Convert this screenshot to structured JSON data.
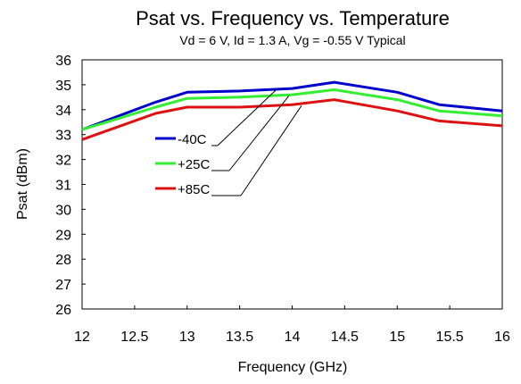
{
  "chart_data": {
    "type": "line",
    "title": "Psat vs. Frequency vs. Temperature",
    "subtitle": "Vd = 6 V, Id = 1.3 A, Vg = -0.55 V Typical",
    "xlabel": "Frequency (GHz)",
    "ylabel": "Psat (dBm)",
    "xlim": [
      12,
      16
    ],
    "ylim": [
      26,
      36
    ],
    "xticks": [
      "12",
      "12.5",
      "13",
      "13.5",
      "14",
      "14.5",
      "15",
      "15.5",
      "16"
    ],
    "yticks": [
      "26",
      "27",
      "28",
      "29",
      "30",
      "31",
      "32",
      "33",
      "34",
      "35",
      "36"
    ],
    "grid": false,
    "legend_position": "center-left",
    "x": [
      12,
      12.7,
      13,
      13.5,
      14,
      14.4,
      15,
      15.4,
      16
    ],
    "series": [
      {
        "name": "-40C",
        "color": "#0000cc",
        "values": [
          33.2,
          34.3,
          34.7,
          34.75,
          34.85,
          35.1,
          34.7,
          34.2,
          33.95
        ]
      },
      {
        "name": "+25C",
        "color": "#33ee33",
        "values": [
          33.2,
          34.1,
          34.45,
          34.5,
          34.6,
          34.8,
          34.4,
          33.95,
          33.75
        ]
      },
      {
        "name": "+85C",
        "color": "#dd1111",
        "values": [
          32.8,
          33.85,
          34.1,
          34.1,
          34.2,
          34.4,
          33.95,
          33.55,
          33.35
        ]
      }
    ]
  }
}
